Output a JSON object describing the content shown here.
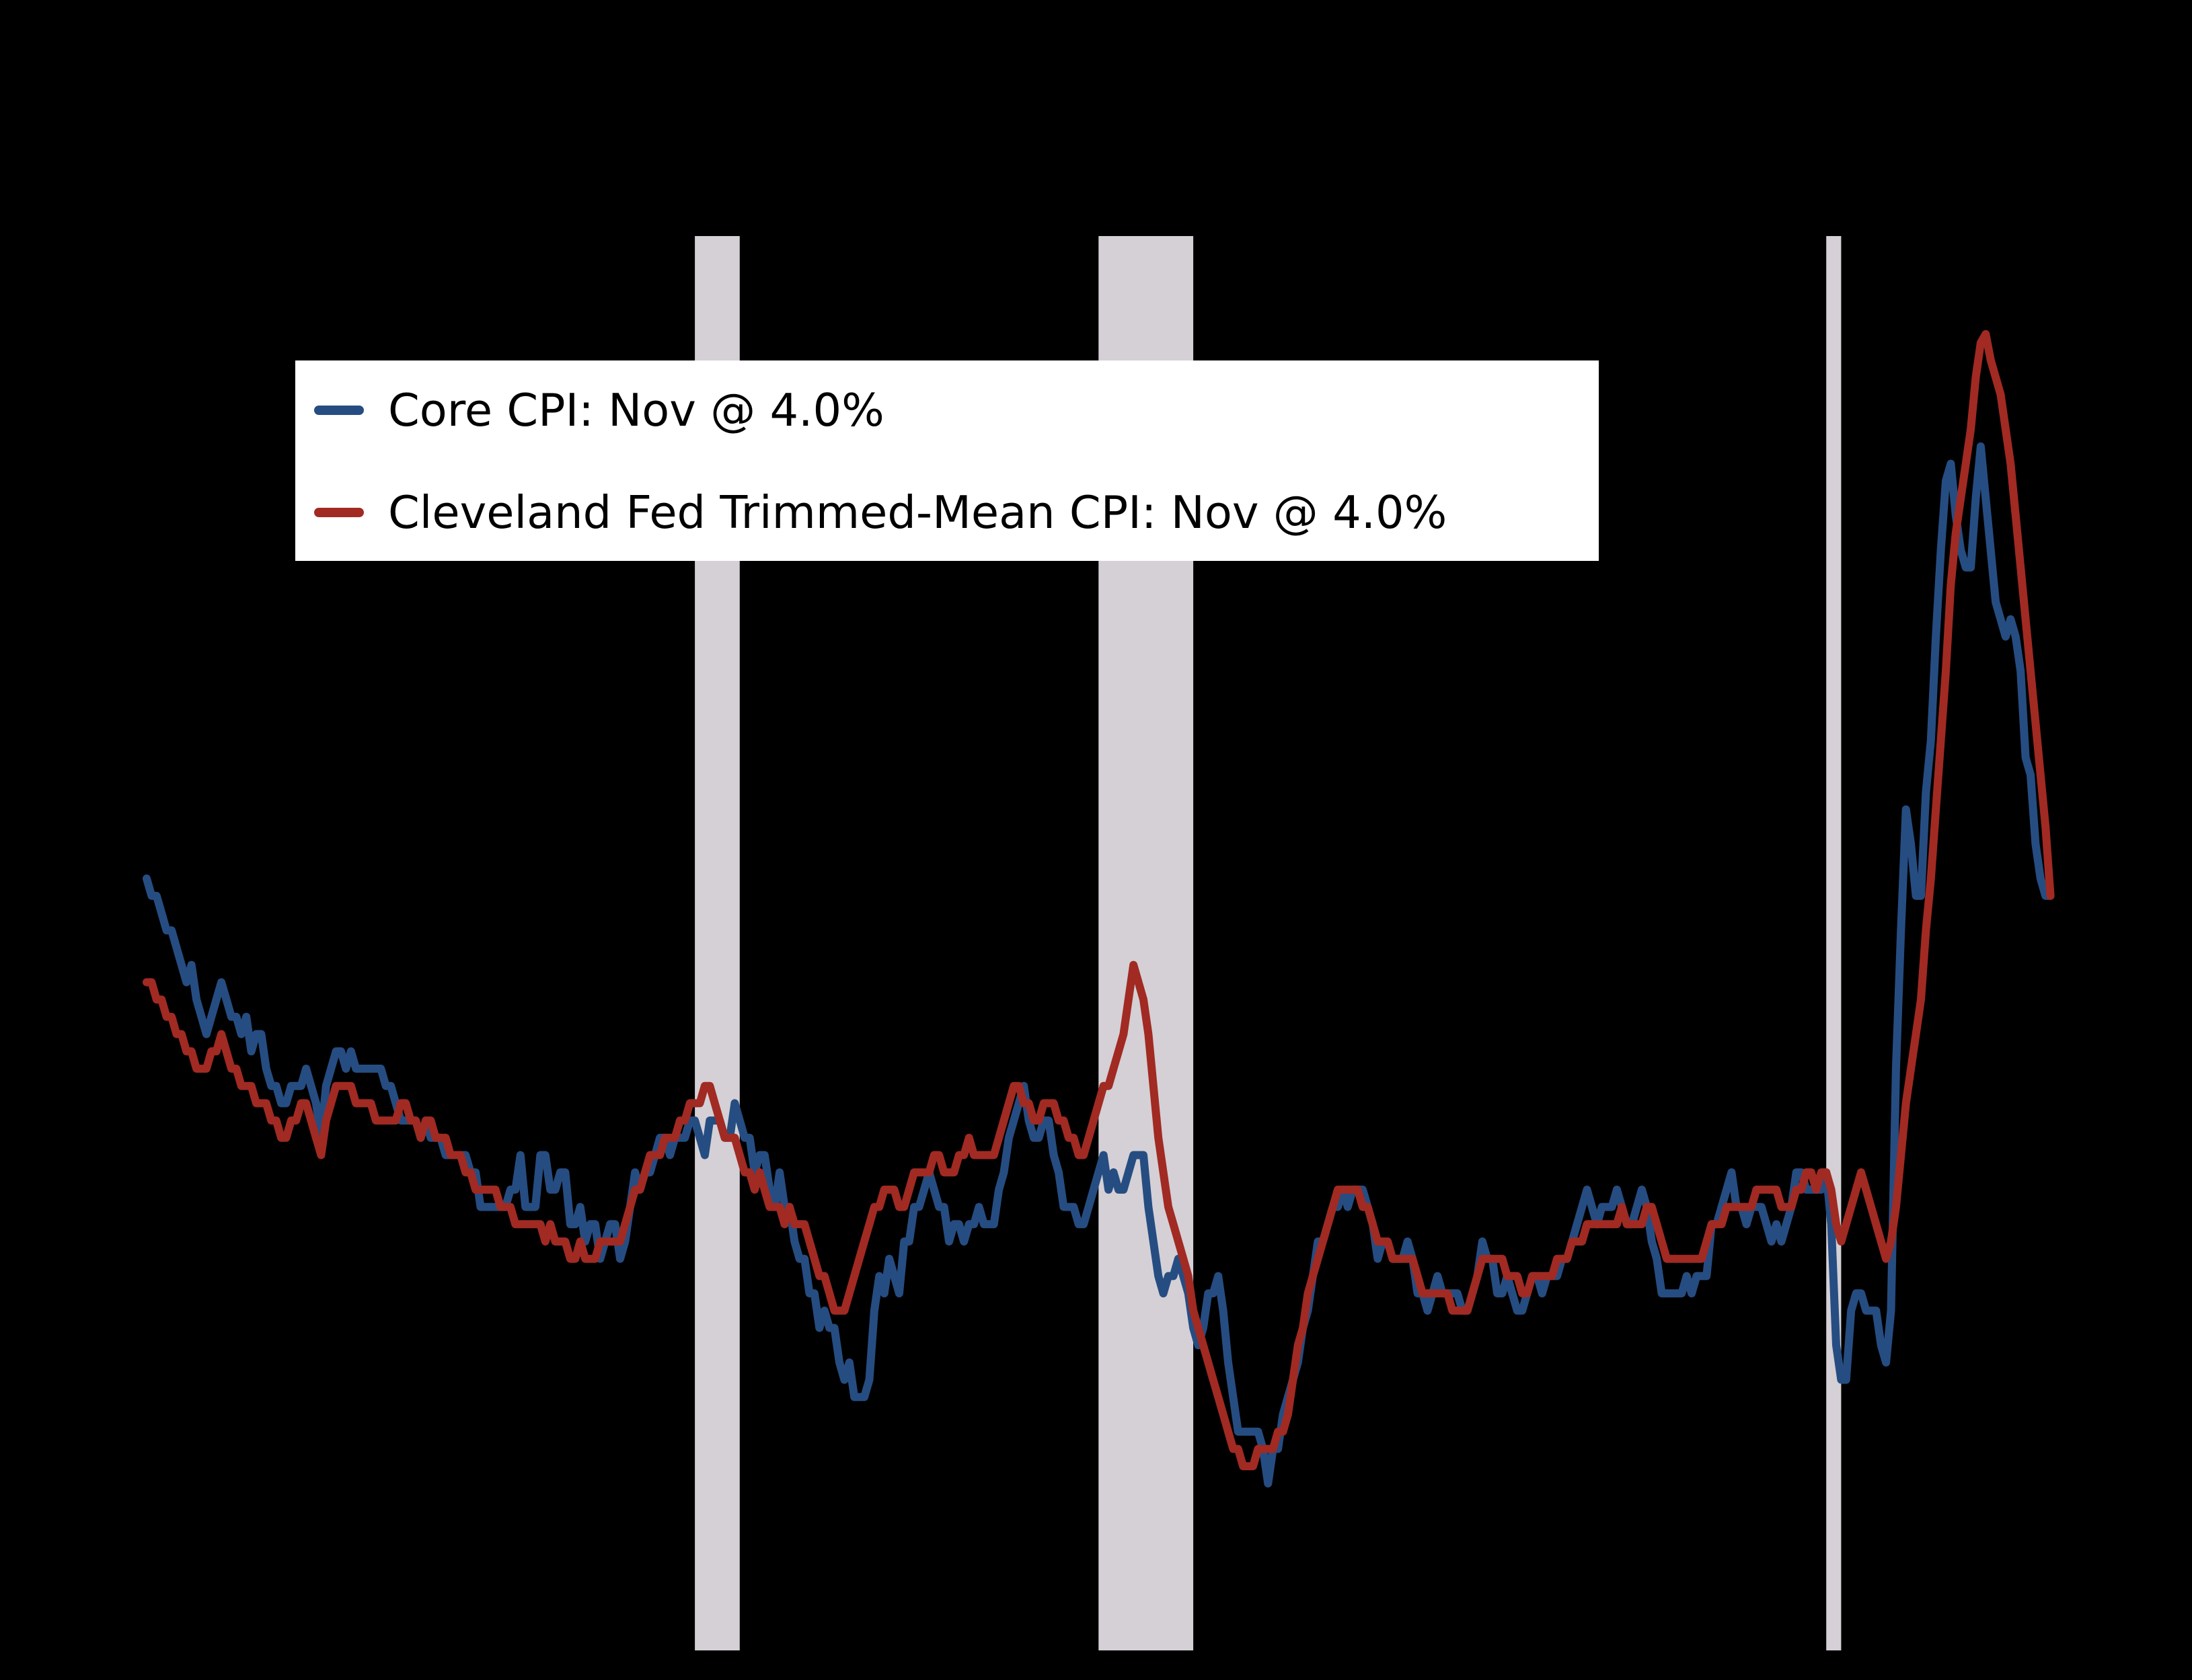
{
  "legend": {
    "items": [
      {
        "label": "Core CPI: Nov @ 4.0%",
        "color": "#264d82"
      },
      {
        "label": "Cleveland Fed Trimmed-Mean CPI: Nov @ 4.0%",
        "color": "#a12a23"
      }
    ]
  },
  "chart_data": {
    "type": "line",
    "unit": "percent, year-over-year",
    "x_range": [
      "1992-01",
      "2023-11"
    ],
    "frequency": "monthly",
    "background_color": "#000000",
    "recession_band_color": "#d4d0d5",
    "recession_bands": [
      {
        "start": "2001-03",
        "end": "2001-11"
      },
      {
        "start": "2007-12",
        "end": "2009-06"
      },
      {
        "start": "2020-02",
        "end": "2020-04"
      }
    ],
    "legend_position": "upper-left",
    "series": [
      {
        "name": "Core CPI",
        "color": "#264d82",
        "last_label": "Nov @ 4.0%",
        "values": [
          4.1,
          4.0,
          4.0,
          3.9,
          3.8,
          3.8,
          3.7,
          3.6,
          3.5,
          3.6,
          3.4,
          3.3,
          3.2,
          3.3,
          3.4,
          3.5,
          3.4,
          3.3,
          3.3,
          3.2,
          3.3,
          3.1,
          3.2,
          3.2,
          3.0,
          2.9,
          2.9,
          2.8,
          2.8,
          2.9,
          2.9,
          2.9,
          3.0,
          2.9,
          2.8,
          2.6,
          2.9,
          3.0,
          3.1,
          3.1,
          3.0,
          3.1,
          3.0,
          3.0,
          3.0,
          3.0,
          3.0,
          3.0,
          2.9,
          2.9,
          2.8,
          2.7,
          2.7,
          2.7,
          2.7,
          2.6,
          2.7,
          2.6,
          2.6,
          2.6,
          2.5,
          2.5,
          2.5,
          2.5,
          2.5,
          2.4,
          2.4,
          2.2,
          2.2,
          2.2,
          2.2,
          2.2,
          2.2,
          2.3,
          2.3,
          2.5,
          2.2,
          2.2,
          2.2,
          2.5,
          2.5,
          2.3,
          2.3,
          2.4,
          2.4,
          2.1,
          2.1,
          2.2,
          2.0,
          2.1,
          2.1,
          1.9,
          2.0,
          2.1,
          2.1,
          1.9,
          2.0,
          2.2,
          2.4,
          2.3,
          2.4,
          2.4,
          2.5,
          2.6,
          2.6,
          2.5,
          2.6,
          2.6,
          2.6,
          2.7,
          2.7,
          2.6,
          2.5,
          2.7,
          2.7,
          2.7,
          2.6,
          2.6,
          2.8,
          2.7,
          2.6,
          2.6,
          2.4,
          2.5,
          2.5,
          2.3,
          2.2,
          2.4,
          2.2,
          2.2,
          2.0,
          1.9,
          1.9,
          1.7,
          1.7,
          1.5,
          1.6,
          1.5,
          1.5,
          1.3,
          1.2,
          1.3,
          1.1,
          1.1,
          1.1,
          1.2,
          1.6,
          1.8,
          1.7,
          1.9,
          1.8,
          1.7,
          2.0,
          2.0,
          2.2,
          2.2,
          2.3,
          2.4,
          2.3,
          2.2,
          2.2,
          2.0,
          2.1,
          2.1,
          2.0,
          2.1,
          2.1,
          2.2,
          2.1,
          2.1,
          2.1,
          2.3,
          2.4,
          2.6,
          2.7,
          2.8,
          2.9,
          2.7,
          2.6,
          2.6,
          2.7,
          2.7,
          2.5,
          2.4,
          2.2,
          2.2,
          2.2,
          2.1,
          2.1,
          2.2,
          2.3,
          2.4,
          2.5,
          2.3,
          2.4,
          2.3,
          2.3,
          2.4,
          2.5,
          2.5,
          2.5,
          2.2,
          2.0,
          1.8,
          1.7,
          1.8,
          1.8,
          1.9,
          1.8,
          1.7,
          1.5,
          1.4,
          1.5,
          1.7,
          1.7,
          1.8,
          1.6,
          1.3,
          1.1,
          0.9,
          0.9,
          0.9,
          0.9,
          0.9,
          0.8,
          0.6,
          0.8,
          0.8,
          1.0,
          1.1,
          1.2,
          1.3,
          1.5,
          1.6,
          1.8,
          2.0,
          2.0,
          2.1,
          2.2,
          2.2,
          2.3,
          2.2,
          2.3,
          2.3,
          2.3,
          2.2,
          2.1,
          1.9,
          2.0,
          2.0,
          1.9,
          1.9,
          1.9,
          2.0,
          1.9,
          1.7,
          1.7,
          1.6,
          1.7,
          1.8,
          1.7,
          1.7,
          1.7,
          1.7,
          1.6,
          1.6,
          1.7,
          1.8,
          2.0,
          1.9,
          1.9,
          1.7,
          1.7,
          1.8,
          1.7,
          1.6,
          1.6,
          1.7,
          1.8,
          1.8,
          1.7,
          1.8,
          1.8,
          1.8,
          1.9,
          1.9,
          2.0,
          2.1,
          2.2,
          2.3,
          2.2,
          2.1,
          2.2,
          2.2,
          2.2,
          2.3,
          2.2,
          2.1,
          2.1,
          2.2,
          2.3,
          2.2,
          2.0,
          1.9,
          1.7,
          1.7,
          1.7,
          1.7,
          1.7,
          1.8,
          1.7,
          1.8,
          1.8,
          1.8,
          2.1,
          2.1,
          2.2,
          2.3,
          2.4,
          2.2,
          2.2,
          2.1,
          2.2,
          2.2,
          2.2,
          2.1,
          2.0,
          2.1,
          2.0,
          2.1,
          2.2,
          2.4,
          2.4,
          2.3,
          2.3,
          2.3,
          2.3,
          2.4,
          2.1,
          1.4,
          1.2,
          1.2,
          1.6,
          1.7,
          1.7,
          1.6,
          1.6,
          1.6,
          1.4,
          1.3,
          1.6,
          3.0,
          3.8,
          4.5,
          4.3,
          4.0,
          4.0,
          4.6,
          4.9,
          5.5,
          6.0,
          6.4,
          6.5,
          6.2,
          6.0,
          5.9,
          5.9,
          6.3,
          6.6,
          6.3,
          6.0,
          5.7,
          5.6,
          5.5,
          5.6,
          5.5,
          5.3,
          4.8,
          4.7,
          4.3,
          4.1,
          4.0,
          4.0
        ]
      },
      {
        "name": "Cleveland Fed Trimmed-Mean CPI",
        "color": "#a12a23",
        "last_label": "Nov @ 4.0%",
        "values": [
          3.5,
          3.5,
          3.4,
          3.4,
          3.3,
          3.3,
          3.2,
          3.2,
          3.1,
          3.1,
          3.0,
          3.0,
          3.0,
          3.1,
          3.1,
          3.2,
          3.1,
          3.0,
          3.0,
          2.9,
          2.9,
          2.9,
          2.8,
          2.8,
          2.8,
          2.7,
          2.7,
          2.6,
          2.6,
          2.7,
          2.7,
          2.8,
          2.8,
          2.7,
          2.6,
          2.5,
          2.7,
          2.8,
          2.9,
          2.9,
          2.9,
          2.9,
          2.8,
          2.8,
          2.8,
          2.8,
          2.7,
          2.7,
          2.7,
          2.7,
          2.7,
          2.8,
          2.8,
          2.7,
          2.7,
          2.6,
          2.7,
          2.7,
          2.6,
          2.6,
          2.6,
          2.5,
          2.5,
          2.5,
          2.4,
          2.4,
          2.3,
          2.3,
          2.3,
          2.3,
          2.3,
          2.2,
          2.2,
          2.2,
          2.1,
          2.1,
          2.1,
          2.1,
          2.1,
          2.1,
          2.0,
          2.1,
          2.0,
          2.0,
          2.0,
          1.9,
          1.9,
          2.0,
          1.9,
          1.9,
          1.9,
          2.0,
          2.0,
          2.0,
          2.0,
          2.0,
          2.1,
          2.2,
          2.3,
          2.3,
          2.4,
          2.5,
          2.5,
          2.5,
          2.6,
          2.6,
          2.6,
          2.7,
          2.7,
          2.8,
          2.8,
          2.8,
          2.9,
          2.9,
          2.8,
          2.7,
          2.6,
          2.6,
          2.6,
          2.5,
          2.4,
          2.4,
          2.3,
          2.4,
          2.3,
          2.2,
          2.2,
          2.2,
          2.1,
          2.2,
          2.1,
          2.1,
          2.1,
          2.0,
          1.9,
          1.8,
          1.8,
          1.7,
          1.6,
          1.6,
          1.6,
          1.7,
          1.8,
          1.9,
          2.0,
          2.1,
          2.2,
          2.2,
          2.3,
          2.3,
          2.3,
          2.2,
          2.2,
          2.3,
          2.4,
          2.4,
          2.4,
          2.4,
          2.5,
          2.5,
          2.4,
          2.4,
          2.4,
          2.5,
          2.5,
          2.6,
          2.5,
          2.5,
          2.5,
          2.5,
          2.5,
          2.6,
          2.7,
          2.8,
          2.9,
          2.9,
          2.8,
          2.8,
          2.7,
          2.7,
          2.8,
          2.8,
          2.8,
          2.7,
          2.7,
          2.6,
          2.6,
          2.5,
          2.5,
          2.6,
          2.7,
          2.8,
          2.9,
          2.9,
          3.0,
          3.1,
          3.2,
          3.4,
          3.6,
          3.5,
          3.4,
          3.2,
          2.9,
          2.6,
          2.4,
          2.2,
          2.1,
          2.0,
          1.9,
          1.8,
          1.6,
          1.5,
          1.4,
          1.3,
          1.2,
          1.1,
          1.0,
          0.9,
          0.8,
          0.8,
          0.7,
          0.7,
          0.7,
          0.8,
          0.8,
          0.8,
          0.8,
          0.9,
          0.9,
          1.0,
          1.2,
          1.4,
          1.5,
          1.7,
          1.8,
          1.9,
          2.0,
          2.1,
          2.2,
          2.3,
          2.3,
          2.3,
          2.3,
          2.3,
          2.2,
          2.2,
          2.1,
          2.0,
          2.0,
          2.0,
          1.9,
          1.9,
          1.9,
          1.9,
          1.9,
          1.8,
          1.7,
          1.7,
          1.7,
          1.7,
          1.7,
          1.7,
          1.6,
          1.6,
          1.6,
          1.6,
          1.7,
          1.8,
          1.9,
          1.9,
          1.9,
          1.9,
          1.9,
          1.8,
          1.8,
          1.8,
          1.7,
          1.7,
          1.8,
          1.8,
          1.8,
          1.8,
          1.8,
          1.9,
          1.9,
          1.9,
          2.0,
          2.0,
          2.0,
          2.1,
          2.1,
          2.1,
          2.1,
          2.1,
          2.1,
          2.1,
          2.2,
          2.1,
          2.1,
          2.1,
          2.1,
          2.2,
          2.2,
          2.1,
          2.0,
          1.9,
          1.9,
          1.9,
          1.9,
          1.9,
          1.9,
          1.9,
          1.9,
          2.0,
          2.1,
          2.1,
          2.1,
          2.2,
          2.2,
          2.2,
          2.2,
          2.2,
          2.2,
          2.3,
          2.3,
          2.3,
          2.3,
          2.3,
          2.2,
          2.2,
          2.2,
          2.3,
          2.3,
          2.4,
          2.4,
          2.3,
          2.4,
          2.4,
          2.3,
          2.1,
          2.0,
          2.1,
          2.2,
          2.3,
          2.4,
          2.3,
          2.2,
          2.1,
          2.0,
          1.9,
          2.0,
          2.2,
          2.5,
          2.8,
          3.0,
          3.2,
          3.4,
          3.8,
          4.1,
          4.5,
          4.9,
          5.3,
          5.8,
          6.1,
          6.3,
          6.5,
          6.7,
          7.0,
          7.2,
          7.25,
          7.1,
          7.0,
          6.9,
          6.7,
          6.5,
          6.2,
          5.9,
          5.6,
          5.3,
          5.0,
          4.7,
          4.4,
          4.0
        ]
      }
    ]
  }
}
